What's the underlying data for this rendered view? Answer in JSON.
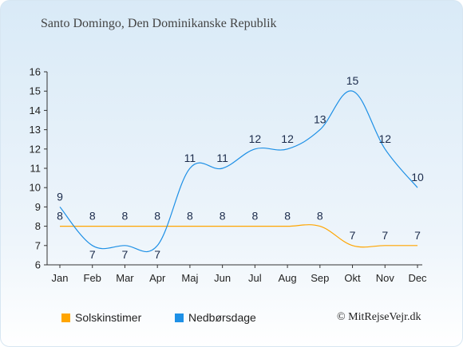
{
  "title": "Santo Domingo, Den Dominikanske Republik",
  "credit": "© MitRejseVejr.dk",
  "colors": {
    "sun": "#ffa500",
    "rain": "#1e90e6"
  },
  "chart_data": {
    "type": "line",
    "categories": [
      "Jan",
      "Feb",
      "Mar",
      "Apr",
      "Maj",
      "Jun",
      "Jul",
      "Aug",
      "Sep",
      "Okt",
      "Nov",
      "Dec"
    ],
    "ylim": [
      6,
      16
    ],
    "yticks": [
      6,
      7,
      8,
      9,
      10,
      11,
      12,
      13,
      14,
      15,
      16
    ],
    "series": [
      {
        "name": "Solskinstimer",
        "values": [
          8,
          8,
          8,
          8,
          8,
          8,
          8,
          8,
          8,
          7,
          7,
          7
        ]
      },
      {
        "name": "Nedbørsdage",
        "values": [
          9,
          7,
          7,
          7,
          11,
          11,
          12,
          12,
          13,
          15,
          12,
          10
        ]
      }
    ],
    "legend_position": "bottom"
  }
}
